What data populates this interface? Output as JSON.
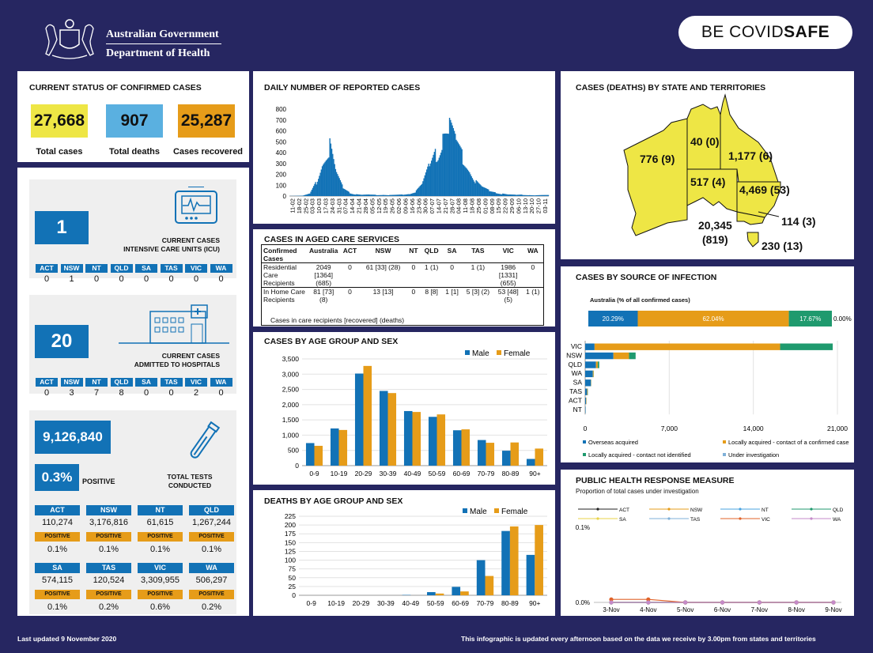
{
  "header": {
    "gov_line1": "Australian Government",
    "gov_line2": "Department of Health",
    "covidsafe_be": "BE COVID",
    "covidsafe_safe": "SAFE"
  },
  "status": {
    "title": "CURRENT STATUS OF CONFIRMED CASES",
    "total_cases": "27,668",
    "total_cases_label": "Total cases",
    "total_deaths": "907",
    "total_deaths_label": "Total deaths",
    "recovered": "25,287",
    "recovered_label": "Cases recovered"
  },
  "states": [
    "ACT",
    "NSW",
    "NT",
    "QLD",
    "SA",
    "TAS",
    "VIC",
    "WA"
  ],
  "icu": {
    "count": "1",
    "label1": "CURRENT CASES",
    "label2": "INTENSIVE CARE UNITS (ICU)",
    "values": [
      "0",
      "1",
      "0",
      "0",
      "0",
      "0",
      "0",
      "0"
    ]
  },
  "hosp": {
    "count": "20",
    "label1": "CURRENT CASES",
    "label2": "ADMITTED TO HOSPITALS",
    "values": [
      "0",
      "3",
      "7",
      "8",
      "0",
      "0",
      "2",
      "0"
    ]
  },
  "tests": {
    "total": "9,126,840",
    "positive_pct": "0.3%",
    "positive_label": "POSITIVE",
    "label1": "TOTAL TESTS",
    "label2": "CONDUCTED",
    "positive_tag": "POSITIVE",
    "rows": [
      [
        {
          "state": "ACT",
          "tests": "110,274",
          "pct": "0.1%"
        },
        {
          "state": "NSW",
          "tests": "3,176,816",
          "pct": "0.1%"
        },
        {
          "state": "NT",
          "tests": "61,615",
          "pct": "0.1%"
        },
        {
          "state": "QLD",
          "tests": "1,267,244",
          "pct": "0.1%"
        }
      ],
      [
        {
          "state": "SA",
          "tests": "574,115",
          "pct": "0.1%"
        },
        {
          "state": "TAS",
          "tests": "120,524",
          "pct": "0.2%"
        },
        {
          "state": "VIC",
          "tests": "3,309,955",
          "pct": "0.6%"
        },
        {
          "state": "WA",
          "tests": "506,297",
          "pct": "0.2%"
        }
      ]
    ]
  },
  "aged": {
    "title": "CASES IN AGED CARE SERVICES",
    "headers": [
      "Confirmed Cases",
      "Australia",
      "ACT",
      "NSW",
      "NT",
      "QLD",
      "SA",
      "TAS",
      "VIC",
      "WA"
    ],
    "rows": [
      [
        "Residential Care Recipients",
        "2049 [1364] (685)",
        "0",
        "61 [33] (28)",
        "0",
        "1 (1)",
        "0",
        "1 (1)",
        "1986 [1331] (655)",
        "0"
      ],
      [
        "In Home Care Recipients",
        "81 [73] (8)",
        "0",
        "13 [13]",
        "0",
        "8 [8]",
        "1 [1]",
        "5 [3] (2)",
        "53 [48] (5)",
        "1 (1)"
      ]
    ],
    "note": "Cases in care recipients [recovered] (deaths)"
  },
  "map": {
    "title": "CASES (DEATHS) BY STATE AND TERRITORIES",
    "WA": "776 (9)",
    "NT": "40 (0)",
    "QLD": "1,177 (6)",
    "SA": "517 (4)",
    "NSW": "4,469 (53)",
    "ACT": "114 (3)",
    "VIC1": "20,345",
    "VIC2": "(819)",
    "TAS": "230 (13)"
  },
  "source": {
    "title": "CASES BY SOURCE OF INFECTION",
    "subtitle": "Australia (% of all confirmed cases)",
    "pct_overseas": "20.29%",
    "pct_local": "62.04%",
    "pct_unknown": "17.67%",
    "pct_invest": "0.00%",
    "legend": [
      "Overseas acquired",
      "Locally acquired - contact of a confirmed case",
      "Locally acquired - contact not identified",
      "Under investigation"
    ],
    "colors": [
      "#1272b6",
      "#e69c19",
      "#1f9a6e",
      "#7fb0d8"
    ]
  },
  "phr": {
    "title": "PUBLIC HEALTH RESPONSE MEASURE",
    "subtitle": "Proportion of total cases under investigation"
  },
  "footer": {
    "left": "Last updated 9 November 2020",
    "right": "This infographic is updated every afternoon based on the data we receive by 3.00pm from states and territories"
  },
  "chart_data": [
    {
      "type": "bar",
      "title": "DAILY NUMBER OF REPORTED CASES",
      "ylim": [
        0,
        800
      ],
      "yticks": [
        0,
        100,
        200,
        300,
        400,
        500,
        600,
        700,
        800
      ],
      "x_tick_labels": [
        "11-02",
        "18-02",
        "25-02",
        "03-03",
        "10-03",
        "17-03",
        "24-03",
        "31-03",
        "07-04",
        "14-04",
        "21-04",
        "28-04",
        "05-05",
        "12-05",
        "19-05",
        "26-05",
        "02-06",
        "09-06",
        "16-06",
        "23-06",
        "30-06",
        "07-07",
        "14-07",
        "21-07",
        "28-07",
        "04-08",
        "11-08",
        "18-08",
        "25-08",
        "01-09",
        "08-09",
        "15-09",
        "22-09",
        "29-09",
        "06-10",
        "13-10",
        "20-10",
        "27-10",
        "03-11"
      ],
      "weekly_values_approx": [
        1,
        2,
        4,
        20,
        120,
        300,
        440,
        180,
        70,
        30,
        15,
        10,
        12,
        10,
        10,
        8,
        10,
        12,
        18,
        45,
        110,
        260,
        400,
        520,
        580,
        450,
        340,
        220,
        120,
        70,
        45,
        30,
        20,
        12,
        10,
        12,
        8,
        6,
        8
      ],
      "color": "#1272b6"
    },
    {
      "type": "bar",
      "title": "CASES BY AGE GROUP AND SEX",
      "categories": [
        "0-9",
        "10-19",
        "20-29",
        "30-39",
        "40-49",
        "50-59",
        "60-69",
        "70-79",
        "80-89",
        "90+"
      ],
      "ylim": [
        0,
        3500
      ],
      "yticks": [
        "0",
        "500",
        "1,000",
        "1,500",
        "2,000",
        "2,500",
        "3,000",
        "3,500"
      ],
      "series": [
        {
          "name": "Male",
          "values": [
            740,
            1220,
            3020,
            2450,
            1790,
            1600,
            1160,
            840,
            490,
            220
          ],
          "color": "#1272b6"
        },
        {
          "name": "Female",
          "values": [
            650,
            1170,
            3270,
            2380,
            1760,
            1680,
            1190,
            750,
            760,
            560
          ],
          "color": "#e69c19"
        }
      ]
    },
    {
      "type": "bar",
      "title": "DEATHS BY AGE GROUP AND SEX",
      "categories": [
        "0-9",
        "10-19",
        "20-29",
        "30-39",
        "40-49",
        "50-59",
        "60-69",
        "70-79",
        "80-89",
        "90+"
      ],
      "ylim": [
        0,
        225
      ],
      "yticks": [
        0,
        25,
        50,
        75,
        100,
        125,
        150,
        175,
        200,
        225
      ],
      "series": [
        {
          "name": "Male",
          "values": [
            0,
            0,
            0,
            0,
            1,
            9,
            24,
            100,
            183,
            115
          ],
          "color": "#1272b6"
        },
        {
          "name": "Female",
          "values": [
            0,
            0,
            0,
            0,
            0,
            5,
            11,
            55,
            196,
            200
          ],
          "color": "#e69c19"
        }
      ]
    },
    {
      "type": "bar",
      "orientation": "horizontal",
      "stacked": true,
      "categories": [
        "VIC",
        "NSW",
        "QLD",
        "WA",
        "SA",
        "TAS",
        "ACT",
        "NT"
      ],
      "xlim": [
        0,
        21000
      ],
      "xticks": [
        "0",
        "7,000",
        "14,000",
        "21,000"
      ],
      "series": [
        {
          "name": "Overseas acquired",
          "values": [
            780,
            2350,
            900,
            640,
            480,
            160,
            80,
            35
          ]
        },
        {
          "name": "Locally acquired - contact of a confirmed case",
          "values": [
            15450,
            1300,
            150,
            60,
            20,
            50,
            30,
            4
          ]
        },
        {
          "name": "Locally acquired - contact not identified",
          "values": [
            4380,
            550,
            120,
            15,
            10,
            20,
            4,
            1
          ]
        },
        {
          "name": "Under investigation",
          "values": [
            0,
            0,
            0,
            0,
            0,
            0,
            0,
            0
          ]
        }
      ]
    },
    {
      "type": "line",
      "x": [
        "3-Nov",
        "4-Nov",
        "5-Nov",
        "6-Nov",
        "7-Nov",
        "8-Nov",
        "9-Nov"
      ],
      "yticks": [
        "0.0%",
        "0.1%"
      ],
      "series": [
        {
          "name": "ACT",
          "values": [
            0,
            0,
            0,
            0,
            0,
            0,
            0
          ],
          "color": "#222222"
        },
        {
          "name": "NSW",
          "values": [
            0,
            0,
            0,
            0,
            0,
            0,
            0
          ],
          "color": "#e69c19"
        },
        {
          "name": "NT",
          "values": [
            0,
            0,
            0,
            0,
            0,
            0,
            0
          ],
          "color": "#4aa3df"
        },
        {
          "name": "QLD",
          "values": [
            0,
            0,
            0,
            0,
            0,
            0,
            0
          ],
          "color": "#1f9a6e"
        },
        {
          "name": "SA",
          "values": [
            0,
            0,
            0,
            0,
            0,
            0,
            0
          ],
          "color": "#e8d34a"
        },
        {
          "name": "TAS",
          "values": [
            0,
            0,
            0,
            0,
            0,
            0,
            0
          ],
          "color": "#7fb0d8"
        },
        {
          "name": "VIC",
          "values": [
            0.004,
            0.004,
            0,
            0,
            0,
            0,
            0
          ],
          "color": "#e0632a"
        },
        {
          "name": "WA",
          "values": [
            0,
            0,
            0,
            0,
            0,
            0,
            0
          ],
          "color": "#c58ac9"
        }
      ]
    }
  ]
}
